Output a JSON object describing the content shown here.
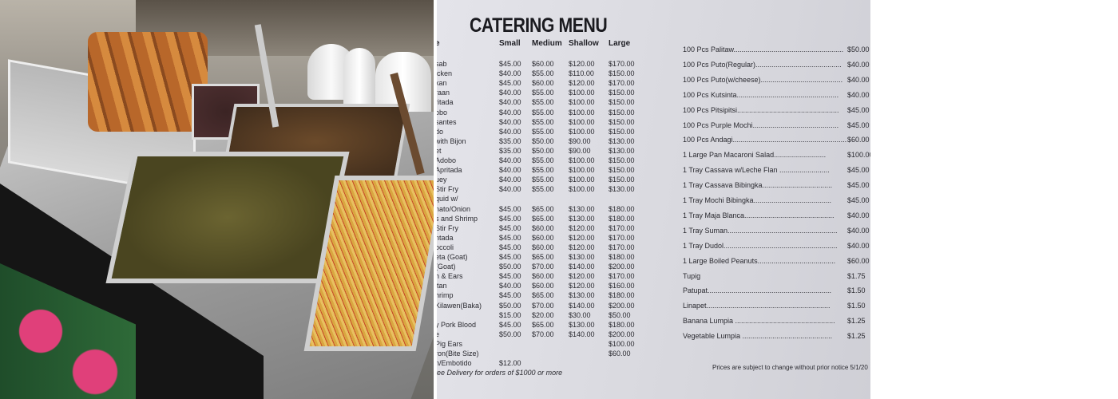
{
  "photo": {
    "alt_content": "Buffet counter with steam trays of food"
  },
  "menu": {
    "title": "CATERING MENU",
    "table": {
      "headers": [
        "e",
        "Small",
        "Medium",
        "Shallow",
        "Large"
      ],
      "rows": [
        [
          "sab",
          "$45.00",
          "$60.00",
          "$120.00",
          "$170.00"
        ],
        [
          "icken",
          "$40.00",
          "$55.00",
          "$110.00",
          "$150.00"
        ],
        [
          "kan",
          "$45.00",
          "$60.00",
          "$120.00",
          "$170.00"
        ],
        [
          "raan",
          "$40.00",
          "$55.00",
          "$100.00",
          "$150.00"
        ],
        [
          "ritada",
          "$40.00",
          "$55.00",
          "$100.00",
          "$150.00"
        ],
        [
          "obo",
          "$40.00",
          "$55.00",
          "$100.00",
          "$150.00"
        ],
        [
          "santes",
          "$40.00",
          "$55.00",
          "$100.00",
          "$150.00"
        ],
        [
          "do",
          "$40.00",
          "$55.00",
          "$100.00",
          "$150.00"
        ],
        [
          "with Bijon",
          "$35.00",
          "$50.00",
          "$90.00",
          "$130.00"
        ],
        [
          "et",
          "$35.00",
          "$50.00",
          "$90.00",
          "$130.00"
        ],
        [
          "Adobo",
          "$40.00",
          "$55.00",
          "$100.00",
          "$150.00"
        ],
        [
          "Apritada",
          "$40.00",
          "$55.00",
          "$100.00",
          "$150.00"
        ],
        [
          "uey",
          "$40.00",
          "$55.00",
          "$100.00",
          "$150.00"
        ],
        [
          "Stir Fry",
          "$40.00",
          "$55.00",
          "$100.00",
          "$130.00"
        ],
        [
          "quid w/",
          "",
          "",
          "",
          ""
        ],
        [
          "nato/Onion",
          "$45.00",
          "$65.00",
          "$130.00",
          "$180.00"
        ],
        [
          "s and Shrimp",
          "$45.00",
          "$65.00",
          "$130.00",
          "$180.00"
        ],
        [
          "Stir Fry",
          "$45.00",
          "$60.00",
          "$120.00",
          "$170.00"
        ],
        [
          "ntada",
          "$45.00",
          "$60.00",
          "$120.00",
          "$170.00"
        ],
        [
          "occoli",
          "$45.00",
          "$60.00",
          "$120.00",
          "$170.00"
        ],
        [
          "eta (Goat)",
          "$45.00",
          "$65.00",
          "$130.00",
          "$180.00"
        ],
        [
          "(Goat)",
          "$50.00",
          "$70.00",
          "$140.00",
          "$200.00"
        ],
        [
          "h & Ears",
          "$45.00",
          "$60.00",
          "$120.00",
          "$170.00"
        ],
        [
          "itan",
          "$40.00",
          "$60.00",
          "$120.00",
          "$160.00"
        ],
        [
          "hrimp",
          "$45.00",
          "$65.00",
          "$130.00",
          "$180.00"
        ],
        [
          "Kilawen(Baka)",
          "$50.00",
          "$70.00",
          "$140.00",
          "$200.00"
        ],
        [
          "",
          "$15.00",
          "$20.00",
          "$30.00",
          "$50.00"
        ],
        [
          "y Pork Blood",
          "$45.00",
          "$65.00",
          "$130.00",
          "$180.00"
        ],
        [
          "e",
          "$50.00",
          "$70.00",
          "$140.00",
          "$200.00"
        ],
        [
          "Pig Ears",
          "",
          "",
          "",
          "$100.00"
        ],
        [
          "ron(Bite Size)",
          "",
          "",
          "",
          "$60.00"
        ],
        [
          "n/Embotido",
          "$12.00",
          "",
          "",
          ""
        ]
      ],
      "footer": "ree Delivery for orders of $1000 or more"
    },
    "list": [
      {
        "name": "100 Pcs Palitaw.......................................................",
        "price": "$50.00"
      },
      {
        "name": "100 Pcs Puto(Regular)...........................................",
        "price": "$40.00"
      },
      {
        "name": "100 Pcs Puto(w/cheese).........................................",
        "price": "$40.00"
      },
      {
        "name": "100 Pcs Kutsinta...................................................",
        "price": "$40.00"
      },
      {
        "name": "100 Pcs Pitsipitsi...................................................",
        "price": "$45.00"
      },
      {
        "name": "100 Pcs Purple Mochi...........................................",
        "price": "$45.00"
      },
      {
        "name": "100 Pcs Andagi.........................................................",
        "price": "$60.00"
      },
      {
        "name": "1 Large Pan Macaroni Salad..........................",
        "price": "$100.00"
      },
      {
        "name": "1 Tray Cassava w/Leche Flan .........................",
        "price": "$45.00"
      },
      {
        "name": "1 Tray Cassava Bibingka...................................",
        "price": "$45.00"
      },
      {
        "name": "1 Tray Mochi Bibingka.......................................",
        "price": "$45.00"
      },
      {
        "name": "1 Tray Maja Blanca.............................................",
        "price": "$40.00"
      },
      {
        "name": "1 Tray Suman.......................................................",
        "price": "$40.00"
      },
      {
        "name": "1 Tray Dudol.........................................................",
        "price": "$40.00"
      },
      {
        "name": "1 Large Boiled Peanuts.......................................",
        "price": "$60.00"
      },
      {
        "name": "Tupig",
        "price": "$1.75"
      },
      {
        "name": "Patupat..............................................................",
        "price": "$1.50"
      },
      {
        "name": "Linapet..............................................................",
        "price": "$1.50"
      },
      {
        "name": "Banana Lumpia ..................................................",
        "price": "$1.25"
      },
      {
        "name": "Vegetable Lumpia .............................................",
        "price": "$1.25"
      }
    ],
    "note": "Prices are subject to change without prior notice 5/1/20"
  }
}
